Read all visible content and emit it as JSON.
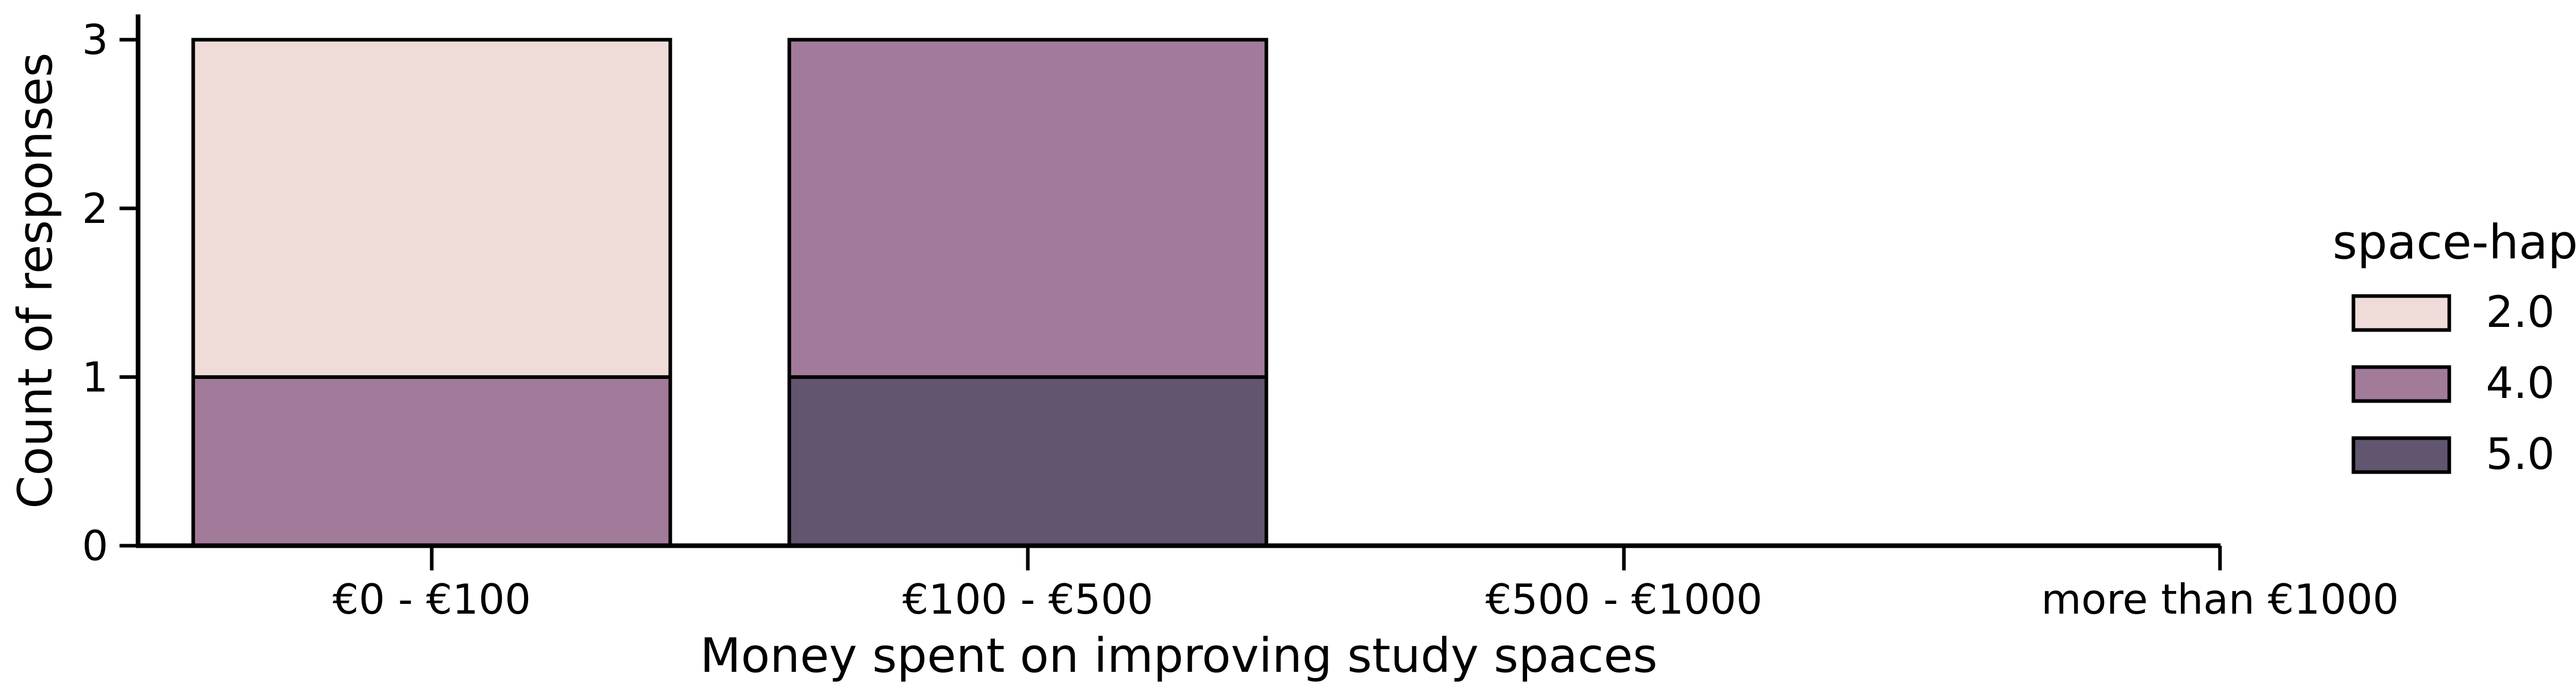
{
  "chart_data": {
    "type": "bar",
    "stacked": true,
    "title": "",
    "xlabel": "Money spent on improving study spaces",
    "ylabel": "Count of responses",
    "categories": [
      "€0 - €100",
      "€100 - €500",
      "€500 - €1000",
      "more than €1000"
    ],
    "ylim": [
      0,
      3.15
    ],
    "yticks": [
      0,
      1,
      2,
      3
    ],
    "grid": false,
    "legend": {
      "title": "space-happy",
      "placement": "right",
      "entries": [
        "2.0",
        "4.0",
        "5.0"
      ]
    },
    "series": [
      {
        "name": "5.0",
        "values": [
          0,
          1,
          0,
          0
        ],
        "color": "#625570"
      },
      {
        "name": "4.0",
        "values": [
          1,
          2,
          0,
          0
        ],
        "color": "#a27b9a"
      },
      {
        "name": "2.0",
        "values": [
          2,
          0,
          0,
          0
        ],
        "color": "#efdcd8"
      }
    ]
  }
}
